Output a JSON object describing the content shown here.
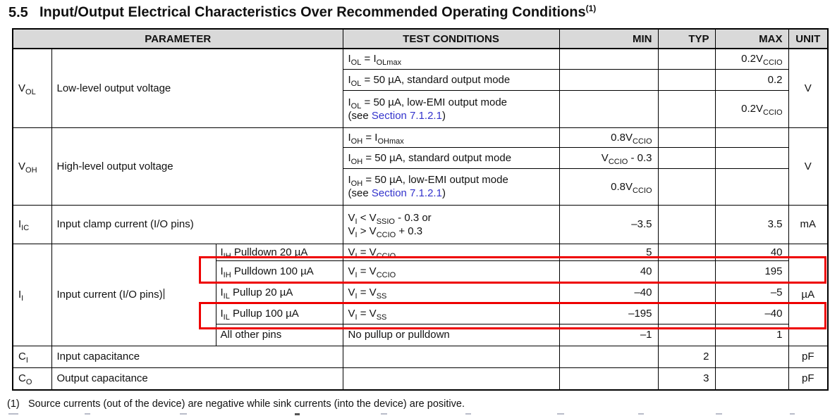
{
  "colors": {
    "header_bg": "#d9d9d9",
    "link": "#3333cc",
    "highlight": "#ee0000"
  },
  "title": {
    "section": "5.5",
    "text": "Input/Output Electrical Characteristics Over Recommended Operating Conditions",
    "footnote_ref": "(1)"
  },
  "table": {
    "header": {
      "parameter": "PARAMETER",
      "test_conditions": "TEST CONDITIONS",
      "min": "MIN",
      "typ": "TYP",
      "max": "MAX",
      "unit": "UNIT"
    },
    "vol": {
      "symbol": "V_{OL}",
      "name": "Low-level output voltage",
      "unit": "V",
      "rows": [
        {
          "cond": "I_{OL} = I_{OLmax}",
          "min": "",
          "typ": "",
          "max": "0.2V_{CCIO}"
        },
        {
          "cond": "I_{OL} = 50 µA, standard output mode",
          "min": "",
          "typ": "",
          "max": "0.2"
        },
        {
          "cond": "I_{OL} = 50 µA, low-EMI output mode",
          "see_prefix": "(see ",
          "see_link": "Section 7.1.2.1",
          "see_suffix": ")",
          "min": "",
          "typ": "",
          "max": "0.2V_{CCIO}"
        }
      ]
    },
    "voh": {
      "symbol": "V_{OH}",
      "name": "High-level output voltage",
      "unit": "V",
      "rows": [
        {
          "cond": "I_{OH} = I_{OHmax}",
          "min": "0.8V_{CCIO}",
          "typ": "",
          "max": ""
        },
        {
          "cond": "I_{OH} = 50 µA, standard output mode",
          "min": "V_{CCIO} - 0.3",
          "typ": "",
          "max": ""
        },
        {
          "cond": "I_{OH} = 50 µA, low-EMI output mode",
          "see_prefix": "(see ",
          "see_link": "Section 7.1.2.1",
          "see_suffix": ")",
          "min": "0.8V_{CCIO}",
          "typ": "",
          "max": ""
        }
      ]
    },
    "iic": {
      "symbol": "I_{IC}",
      "name": "Input clamp current (I/O pins)",
      "cond_line1": "V_{I} < V_{SSIO} - 0.3 or",
      "cond_line2": "V_{I} > V_{CCIO} + 0.3",
      "min": "–3.5",
      "typ": "",
      "max": "3.5",
      "unit": "mA"
    },
    "ii": {
      "symbol": "I_{I}",
      "name": "Input current (I/O pins)",
      "unit": "µA",
      "rows": [
        {
          "sub": "I_{IH} Pulldown 20 µA",
          "cond": "V_{I} = V_{CCIO}",
          "min": "5",
          "typ": "",
          "max": "40",
          "highlighted": false
        },
        {
          "sub": "I_{IH} Pulldown 100 µA",
          "cond": "V_{I} = V_{CCIO}",
          "min": "40",
          "typ": "",
          "max": "195",
          "highlighted": true
        },
        {
          "sub": "I_{IL} Pullup 20 µA",
          "cond": "V_{I} = V_{SS}",
          "min": "–40",
          "typ": "",
          "max": "–5",
          "highlighted": false
        },
        {
          "sub": "I_{IL} Pullup 100 µA",
          "cond": "V_{I} = V_{SS}",
          "min": "–195",
          "typ": "",
          "max": "–40",
          "highlighted": true
        },
        {
          "sub": "All other pins",
          "cond": "No pullup or pulldown",
          "min": "–1",
          "typ": "",
          "max": "1",
          "highlighted": false
        }
      ]
    },
    "ci": {
      "symbol": "C_{I}",
      "name": "Input capacitance",
      "min": "",
      "typ": "2",
      "max": "",
      "unit": "pF"
    },
    "co": {
      "symbol": "C_{O}",
      "name": "Output capacitance",
      "min": "",
      "typ": "3",
      "max": "",
      "unit": "pF"
    }
  },
  "footnote": {
    "number": "(1)",
    "text": "Source currents (out of the device) are negative while sink currents (into the device) are positive."
  }
}
